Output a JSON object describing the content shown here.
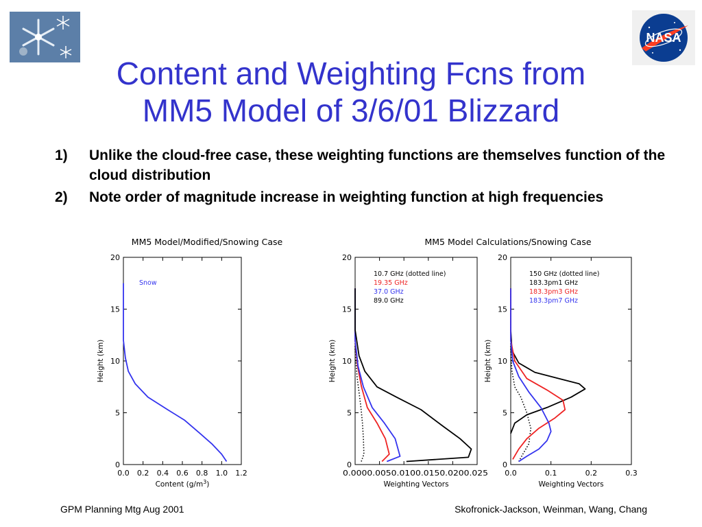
{
  "slide": {
    "title_line1": "Content and Weighting Fcns from",
    "title_line2": "MM5 Model of 3/6/01 Blizzard",
    "bullets": [
      {
        "num": "1)",
        "text": "Unlike the cloud-free case, these weighting functions are themselves function of the cloud distribution"
      },
      {
        "num": "2)",
        "text": "Note order of magnitude increase in weighting function at high frequencies"
      }
    ],
    "footer_left": "GPM Planning Mtg Aug 2001",
    "footer_right": "Skofronick-Jackson, Weinman, Wang, Chang",
    "logos": {
      "left": "snowflake-photo",
      "right": "nasa-meatball-logo"
    },
    "nasa_logo_text": "NASA",
    "colors": {
      "title": "#3333cc",
      "blue": "#3333ee",
      "red": "#ee2222",
      "black": "#000000"
    }
  },
  "chart_data": [
    {
      "type": "line",
      "title": "MM5 Model/Modified/Snowing Case",
      "xlabel": "Content (g/m",
      "xlabel_sup": "3",
      "xlabel_end": ")",
      "ylabel": "Height (km)",
      "xlim": [
        0,
        1.2
      ],
      "ylim": [
        0,
        20
      ],
      "xticks": [
        "0.0",
        "0.2",
        "0.4",
        "0.6",
        "0.8",
        "1.0",
        "1.2"
      ],
      "yticks": [
        "0",
        "5",
        "10",
        "15",
        "20"
      ],
      "legend": [
        {
          "text": "Snow",
          "color": "#3333ee"
        }
      ],
      "series": [
        {
          "name": "Snow",
          "color": "#3333ee",
          "dash": false,
          "points": [
            [
              0,
              17.5
            ],
            [
              0.0,
              12
            ],
            [
              0.02,
              10.3
            ],
            [
              0.05,
              9.0
            ],
            [
              0.12,
              7.8
            ],
            [
              0.25,
              6.5
            ],
            [
              0.45,
              5.3
            ],
            [
              0.62,
              4.3
            ],
            [
              0.78,
              3.0
            ],
            [
              0.9,
              2.0
            ],
            [
              1.0,
              1.0
            ],
            [
              1.05,
              0.3
            ]
          ]
        }
      ]
    },
    {
      "type": "line",
      "title": "",
      "xlabel": "Weighting Vectors",
      "ylabel": "Height (km)",
      "xlim": [
        0,
        0.025
      ],
      "ylim": [
        0,
        20
      ],
      "xticks": [
        "0.000",
        "0.005",
        "0.010",
        "0.015",
        "0.020",
        "0.025"
      ],
      "xticks_joined": "0.0000.0050.0100.0150.0200.025",
      "yticks": [
        "0",
        "5",
        "10",
        "15",
        "20"
      ],
      "legend": [
        {
          "text": "10.7 GHz (dotted line)",
          "color": "#000000"
        },
        {
          "text": "19.35 GHz",
          "color": "#ee2222"
        },
        {
          "text": "37.0 GHz",
          "color": "#3333ee"
        },
        {
          "text": "89.0 GHz",
          "color": "#000000"
        }
      ],
      "series": [
        {
          "name": "10.7 GHz",
          "color": "#000000",
          "dash": true,
          "points": [
            [
              0.0,
              17
            ],
            [
              0.0,
              11
            ],
            [
              0.0004,
              8.5
            ],
            [
              0.0008,
              7.0
            ],
            [
              0.0012,
              5.5
            ],
            [
              0.0015,
              4.0
            ],
            [
              0.0017,
              2.5
            ],
            [
              0.0018,
              1.0
            ],
            [
              0.0012,
              0.2
            ]
          ]
        },
        {
          "name": "19.35 GHz",
          "color": "#ee2222",
          "dash": false,
          "points": [
            [
              0.0,
              17
            ],
            [
              0.0,
              12
            ],
            [
              0.0005,
              9.5
            ],
            [
              0.0013,
              7.5
            ],
            [
              0.0025,
              5.5
            ],
            [
              0.0045,
              4.0
            ],
            [
              0.0062,
              2.5
            ],
            [
              0.007,
              1.0
            ],
            [
              0.0055,
              0.3
            ]
          ]
        },
        {
          "name": "37.0 GHz",
          "color": "#3333ee",
          "dash": false,
          "points": [
            [
              0.0,
              17
            ],
            [
              0.0,
              12
            ],
            [
              0.0006,
              9.5
            ],
            [
              0.0017,
              7.5
            ],
            [
              0.0035,
              5.5
            ],
            [
              0.006,
              4.0
            ],
            [
              0.0082,
              2.5
            ],
            [
              0.0092,
              0.8
            ],
            [
              0.0065,
              0.3
            ]
          ]
        },
        {
          "name": "89.0 GHz",
          "color": "#000000",
          "dash": false,
          "points": [
            [
              0.0,
              17
            ],
            [
              0.0,
              13
            ],
            [
              0.0008,
              10.5
            ],
            [
              0.002,
              9.0
            ],
            [
              0.0045,
              7.5
            ],
            [
              0.0085,
              6.5
            ],
            [
              0.0135,
              5.3
            ],
            [
              0.018,
              3.7
            ],
            [
              0.0215,
              2.5
            ],
            [
              0.0238,
              1.5
            ],
            [
              0.0232,
              0.7
            ],
            [
              0.0105,
              0.3
            ]
          ]
        }
      ]
    },
    {
      "type": "line",
      "title": "",
      "xlabel": "Weighting Vectors",
      "ylabel": "Height (km)",
      "xlim": [
        0,
        0.3
      ],
      "ylim": [
        0,
        20
      ],
      "xticks": [
        "0.0",
        "0.1",
        "0.2",
        "0.3"
      ],
      "yticks": [
        "0",
        "5",
        "10",
        "15",
        "20"
      ],
      "legend": [
        {
          "text": "150 GHz (dotted line)",
          "color": "#000000"
        },
        {
          "text": "183.3pm1 GHz",
          "color": "#000000"
        },
        {
          "text": "183.3pm3 GHz",
          "color": "#ee2222"
        },
        {
          "text": "183.3pm7 GHz",
          "color": "#3333ee"
        }
      ],
      "series": [
        {
          "name": "150 GHz",
          "color": "#000000",
          "dash": true,
          "points": [
            [
              0.0,
              17
            ],
            [
              0.0,
              11
            ],
            [
              0.003,
              9.0
            ],
            [
              0.01,
              7.5
            ],
            [
              0.025,
              6.5
            ],
            [
              0.04,
              5.0
            ],
            [
              0.05,
              3.5
            ],
            [
              0.045,
              2.0
            ],
            [
              0.03,
              1.0
            ],
            [
              0.02,
              0.3
            ]
          ]
        },
        {
          "name": "183.3pm1 GHz",
          "color": "#000000",
          "dash": false,
          "points": [
            [
              0.0,
              17
            ],
            [
              0.0,
              13
            ],
            [
              0.003,
              11
            ],
            [
              0.02,
              9.8
            ],
            [
              0.06,
              8.9
            ],
            [
              0.12,
              8.3
            ],
            [
              0.17,
              7.8
            ],
            [
              0.185,
              7.3
            ],
            [
              0.15,
              6.5
            ],
            [
              0.09,
              5.5
            ],
            [
              0.04,
              4.8
            ],
            [
              0.01,
              4.0
            ],
            [
              0.0,
              3.0
            ]
          ]
        },
        {
          "name": "183.3pm3 GHz",
          "color": "#ee2222",
          "dash": false,
          "points": [
            [
              0.0,
              17
            ],
            [
              0.0,
              12
            ],
            [
              0.01,
              10
            ],
            [
              0.04,
              8.3
            ],
            [
              0.09,
              7.2
            ],
            [
              0.13,
              6.2
            ],
            [
              0.135,
              5.3
            ],
            [
              0.11,
              4.5
            ],
            [
              0.07,
              3.5
            ],
            [
              0.04,
              2.5
            ],
            [
              0.02,
              1.5
            ],
            [
              0.005,
              0.5
            ]
          ]
        },
        {
          "name": "183.3pm7 GHz",
          "color": "#3333ee",
          "dash": false,
          "points": [
            [
              0.0,
              17
            ],
            [
              0.0,
              12
            ],
            [
              0.005,
              10
            ],
            [
              0.02,
              8.5
            ],
            [
              0.045,
              7.0
            ],
            [
              0.075,
              5.5
            ],
            [
              0.095,
              4.0
            ],
            [
              0.1,
              3.2
            ],
            [
              0.09,
              2.3
            ],
            [
              0.07,
              1.5
            ],
            [
              0.04,
              0.8
            ],
            [
              0.02,
              0.3
            ]
          ]
        }
      ]
    }
  ],
  "figure_title_right": "MM5 Model Calculations/Snowing Case"
}
